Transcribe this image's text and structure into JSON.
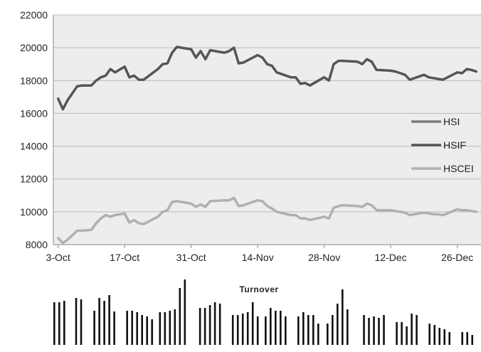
{
  "chart_data": [
    {
      "type": "line",
      "ylim": [
        8000,
        22000
      ],
      "yticks": [
        "8000",
        "10000",
        "12000",
        "14000",
        "16000",
        "18000",
        "20000",
        "22000"
      ],
      "ytick_values": [
        8000,
        10000,
        12000,
        14000,
        16000,
        18000,
        20000,
        22000
      ],
      "xticks": [
        "3-Oct",
        "17-Oct",
        "31-Oct",
        "14-Nov",
        "28-Nov",
        "12-Dec",
        "26-Dec"
      ],
      "xtick_days": [
        0,
        14,
        28,
        42,
        56,
        70,
        84
      ],
      "xlim_days": [
        -1,
        89
      ],
      "grid": true,
      "legend_position": "right",
      "series": [
        {
          "name": "HSI",
          "color": "#7a7a7a",
          "x_days": [],
          "values": []
        },
        {
          "name": "HSIF",
          "color": "#555555",
          "x_days": [
            0,
            1,
            2,
            4,
            5,
            7,
            8,
            9,
            10,
            11,
            12,
            14,
            15,
            16,
            17,
            18,
            21,
            22,
            23,
            24,
            25,
            26,
            28,
            29,
            30,
            31,
            32,
            35,
            36,
            37,
            38,
            39,
            42,
            43,
            44,
            45,
            46,
            49,
            50,
            51,
            52,
            53,
            56,
            57,
            58,
            59,
            60,
            63,
            64,
            65,
            66,
            67,
            70,
            71,
            72,
            73,
            74,
            77,
            78,
            79,
            80,
            81,
            84,
            85,
            86,
            87,
            88
          ],
          "values": [
            16900,
            16250,
            16800,
            17650,
            17700,
            17700,
            18000,
            18200,
            18300,
            18700,
            18500,
            18850,
            18200,
            18300,
            18050,
            18050,
            18700,
            19000,
            19050,
            19700,
            20050,
            20000,
            19900,
            19400,
            19800,
            19300,
            19850,
            19700,
            19800,
            20000,
            19050,
            19100,
            19550,
            19400,
            19000,
            18900,
            18500,
            18200,
            18200,
            17800,
            17850,
            17700,
            18200,
            18000,
            19000,
            19200,
            19200,
            19150,
            19000,
            19300,
            19150,
            18650,
            18600,
            18550,
            18450,
            18350,
            18050,
            18350,
            18200,
            18150,
            18100,
            18050,
            18500,
            18450,
            18700,
            18650,
            18550
          ]
        },
        {
          "name": "HSCEI",
          "color": "#b0b0b0",
          "x_days": [
            0,
            1,
            2,
            4,
            5,
            7,
            8,
            9,
            10,
            11,
            12,
            14,
            15,
            16,
            17,
            18,
            21,
            22,
            23,
            24,
            25,
            26,
            28,
            29,
            30,
            31,
            32,
            35,
            36,
            37,
            38,
            39,
            42,
            43,
            44,
            45,
            46,
            49,
            50,
            51,
            52,
            53,
            56,
            57,
            58,
            59,
            60,
            63,
            64,
            65,
            66,
            67,
            70,
            71,
            72,
            73,
            74,
            77,
            78,
            79,
            80,
            81,
            84,
            85,
            86,
            87,
            88
          ],
          "values": [
            8400,
            8100,
            8300,
            8850,
            8850,
            8900,
            9300,
            9600,
            9800,
            9700,
            9800,
            9900,
            9350,
            9500,
            9300,
            9250,
            9700,
            10000,
            10100,
            10600,
            10650,
            10600,
            10500,
            10300,
            10450,
            10300,
            10650,
            10700,
            10700,
            10850,
            10350,
            10400,
            10700,
            10650,
            10350,
            10200,
            10000,
            9800,
            9800,
            9600,
            9600,
            9500,
            9700,
            9600,
            10250,
            10350,
            10400,
            10350,
            10300,
            10500,
            10400,
            10100,
            10100,
            10050,
            10000,
            9950,
            9800,
            9950,
            9900,
            9850,
            9850,
            9800,
            10150,
            10100,
            10100,
            10050,
            10000
          ]
        }
      ]
    },
    {
      "type": "bar",
      "title": "Turnover",
      "color": "#111111",
      "ylim": [
        0,
        100
      ],
      "groups": [
        {
          "x_day": 0,
          "values": [
            60,
            60,
            62
          ]
        },
        {
          "x_day": 6,
          "values": [
            66,
            64
          ]
        },
        {
          "x_day": 11,
          "values": [
            48,
            66,
            62,
            70,
            47
          ]
        },
        {
          "x_day": 20,
          "values": [
            48,
            48,
            46,
            42,
            40,
            36
          ]
        },
        {
          "x_day": 29,
          "values": [
            46,
            46,
            48,
            50,
            80,
            92
          ]
        },
        {
          "x_day": 40,
          "values": [
            52,
            52,
            56,
            60,
            58
          ]
        },
        {
          "x_day": 49,
          "values": [
            42,
            42,
            44,
            46,
            60,
            40
          ]
        },
        {
          "x_day": 58,
          "values": [
            40,
            52,
            48,
            48,
            40
          ]
        },
        {
          "x_day": 67,
          "values": [
            40,
            46,
            42,
            42,
            30
          ]
        },
        {
          "x_day": 75,
          "values": [
            30,
            42,
            58,
            78,
            50
          ]
        },
        {
          "x_day": 85,
          "values": [
            42,
            38,
            40,
            38,
            42
          ]
        },
        {
          "x_day": 94,
          "values": [
            32,
            32,
            26,
            44,
            42
          ]
        },
        {
          "x_day": 103,
          "values": [
            30,
            28,
            24,
            22,
            18
          ]
        },
        {
          "x_day": 112,
          "values": [
            18,
            18,
            14
          ]
        }
      ]
    }
  ]
}
